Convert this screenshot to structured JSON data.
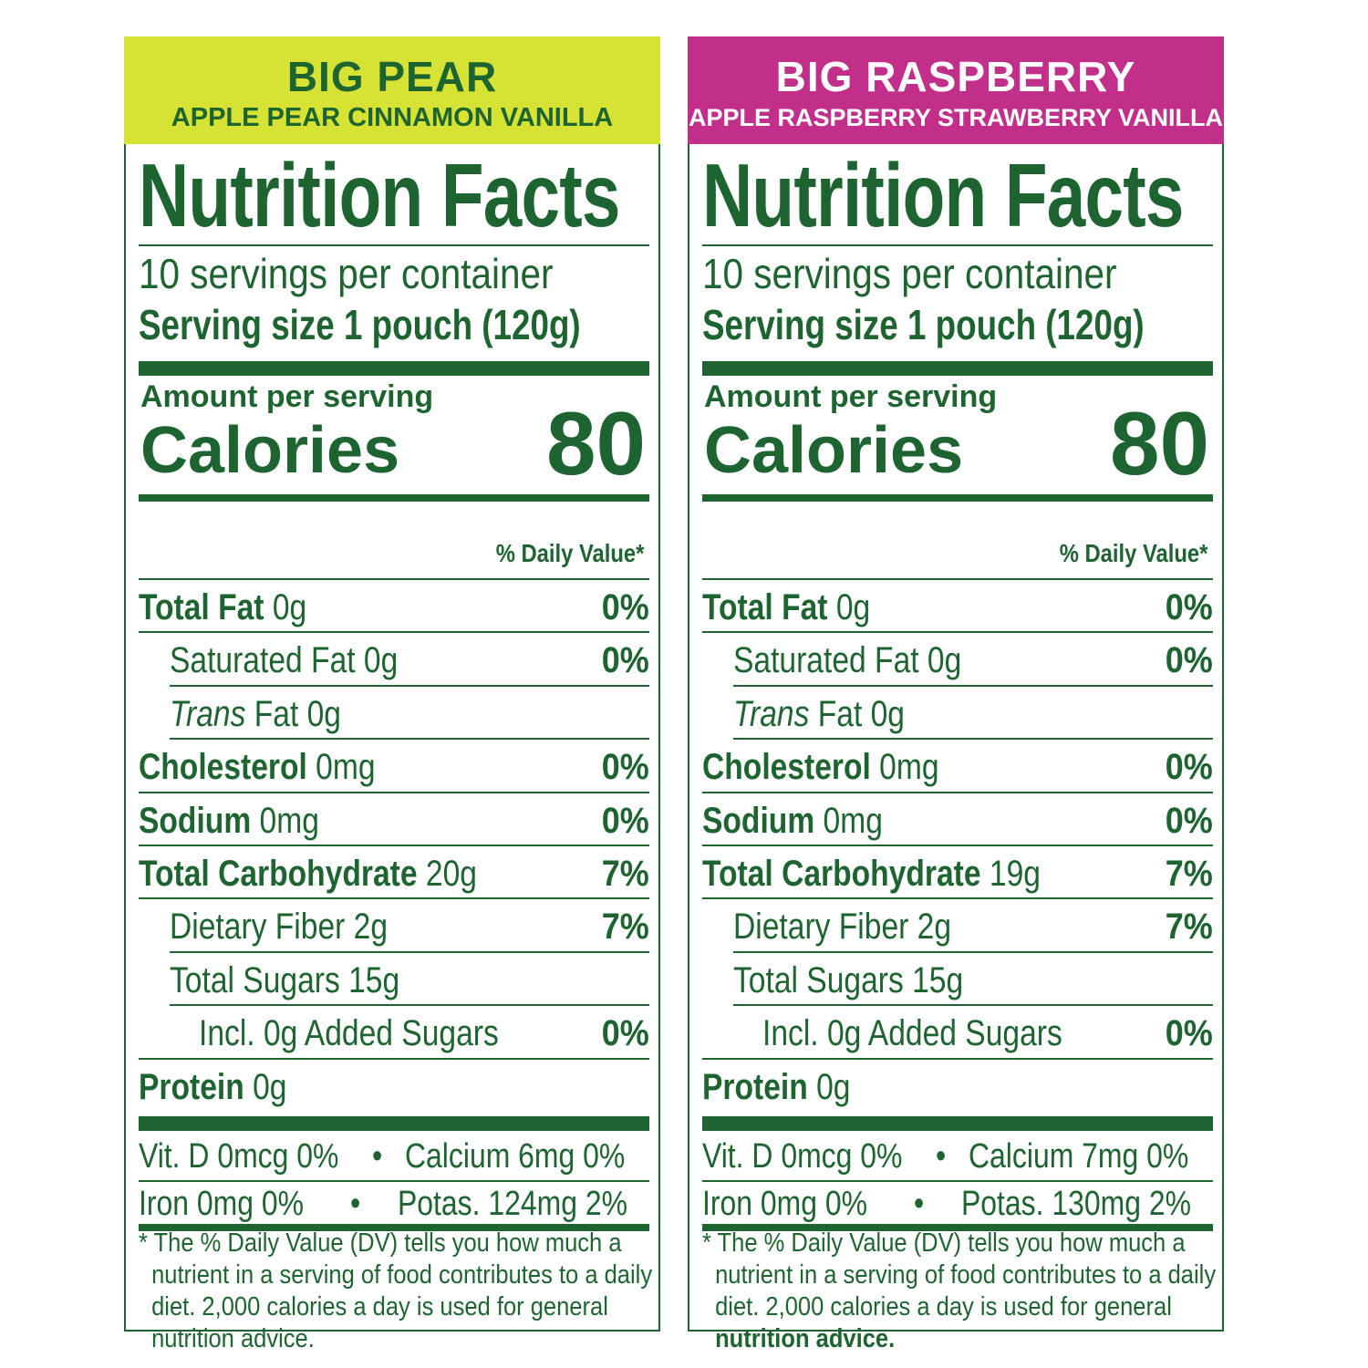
{
  "labels": [
    {
      "name": "BIG PEAR",
      "flavor": "APPLE PEAR CINNAMON VANILLA",
      "banner_color": "#d6e234",
      "title": "Nutrition Facts",
      "servings": "10 servings per container",
      "serving_size": "Serving size 1 pouch (120g)",
      "amount_label": "Amount per serving",
      "calories_label": "Calories",
      "calories": "80",
      "dv_header": "% Daily Value*",
      "rows": [
        {
          "label": "Total Fat",
          "amount": " 0g",
          "dv": "0%"
        },
        {
          "label": "Saturated Fat 0g",
          "amount": "",
          "dv": "0%"
        },
        {
          "label": "Trans",
          "amount": " Fat 0g",
          "dv": ""
        },
        {
          "label": "Cholesterol",
          "amount": " 0mg",
          "dv": "0%"
        },
        {
          "label": "Sodium",
          "amount": " 0mg",
          "dv": "0%"
        },
        {
          "label": "Total Carbohydrate",
          "amount": " 20g",
          "dv": "7%"
        },
        {
          "label": "Dietary Fiber 2g",
          "amount": "",
          "dv": "7%"
        },
        {
          "label": "Total Sugars 15g",
          "amount": "",
          "dv": ""
        },
        {
          "label": "Incl. 0g Added Sugars",
          "amount": "",
          "dv": "0%"
        },
        {
          "label": "Protein",
          "amount": " 0g",
          "dv": ""
        }
      ],
      "vitamins": {
        "vit_d": "Vit. D 0mcg 0%",
        "calcium": "Calcium 6mg 0%",
        "iron": "Iron 0mg 0%",
        "potassium": "Potas. 124mg 2%",
        "bullet": "•"
      },
      "footnote": [
        "* The % Daily Value (DV) tells you how much a",
        "nutrient in a serving of food contributes to a daily",
        "diet. 2,000 calories a day is used for general",
        "nutrition advice."
      ]
    },
    {
      "name": "BIG RASPBERRY",
      "flavor": "APPLE RASPBERRY STRAWBERRY VANILLA",
      "banner_color": "#c22f8b",
      "title": "Nutrition Facts",
      "servings": "10 servings per container",
      "serving_size": "Serving size 1 pouch (120g)",
      "amount_label": "Amount per serving",
      "calories_label": "Calories",
      "calories": "80",
      "dv_header": "% Daily Value*",
      "rows": [
        {
          "label": "Total Fat",
          "amount": " 0g",
          "dv": "0%"
        },
        {
          "label": "Saturated Fat 0g",
          "amount": "",
          "dv": "0%"
        },
        {
          "label": "Trans",
          "amount": " Fat 0g",
          "dv": ""
        },
        {
          "label": "Cholesterol",
          "amount": " 0mg",
          "dv": "0%"
        },
        {
          "label": "Sodium",
          "amount": " 0mg",
          "dv": "0%"
        },
        {
          "label": "Total Carbohydrate",
          "amount": " 19g",
          "dv": "7%"
        },
        {
          "label": "Dietary Fiber 2g",
          "amount": "",
          "dv": "7%"
        },
        {
          "label": "Total Sugars 15g",
          "amount": "",
          "dv": ""
        },
        {
          "label": "Incl. 0g Added Sugars",
          "amount": "",
          "dv": "0%"
        },
        {
          "label": "Protein",
          "amount": " 0g",
          "dv": ""
        }
      ],
      "vitamins": {
        "vit_d": "Vit. D 0mcg 0%",
        "calcium": "Calcium 7mg 0%",
        "iron": "Iron 0mg 0%",
        "potassium": "Potas. 130mg 2%",
        "bullet": "•"
      },
      "footnote": [
        "* The % Daily Value (DV) tells you how much a",
        "nutrient in a serving of food contributes to a daily",
        "diet. 2,000 calories a day is used for general",
        "nutrition advice."
      ]
    }
  ],
  "colors": {
    "text_green": "#1e6431"
  }
}
